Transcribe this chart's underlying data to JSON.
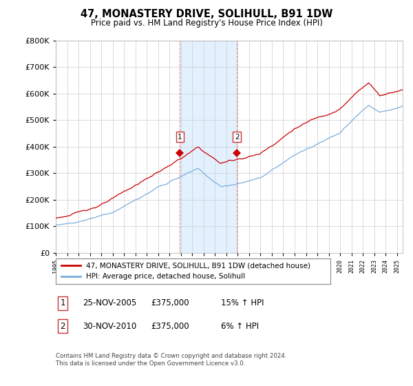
{
  "title": "47, MONASTERY DRIVE, SOLIHULL, B91 1DW",
  "subtitle": "Price paid vs. HM Land Registry's House Price Index (HPI)",
  "ylim": [
    0,
    800000
  ],
  "xlim_start": 1995.0,
  "xlim_end": 2025.5,
  "red_color": "#cc0000",
  "blue_color": "#7aaddd",
  "shade_color": "#ddeeff",
  "vline_color": "#ee8888",
  "transaction1_x": 2005.92,
  "transaction1_y": 375000,
  "transaction2_x": 2010.92,
  "transaction2_y": 375000,
  "legend_red_label": "47, MONASTERY DRIVE, SOLIHULL, B91 1DW (detached house)",
  "legend_blue_label": "HPI: Average price, detached house, Solihull",
  "footnote": "Contains HM Land Registry data © Crown copyright and database right 2024.\nThis data is licensed under the Open Government Licence v3.0.",
  "table_row1": [
    "1",
    "25-NOV-2005",
    "£375,000",
    "15% ↑ HPI"
  ],
  "table_row2": [
    "2",
    "30-NOV-2010",
    "£375,000",
    "6% ↑ HPI"
  ],
  "background_color": "#ffffff",
  "grid_color": "#cccccc"
}
